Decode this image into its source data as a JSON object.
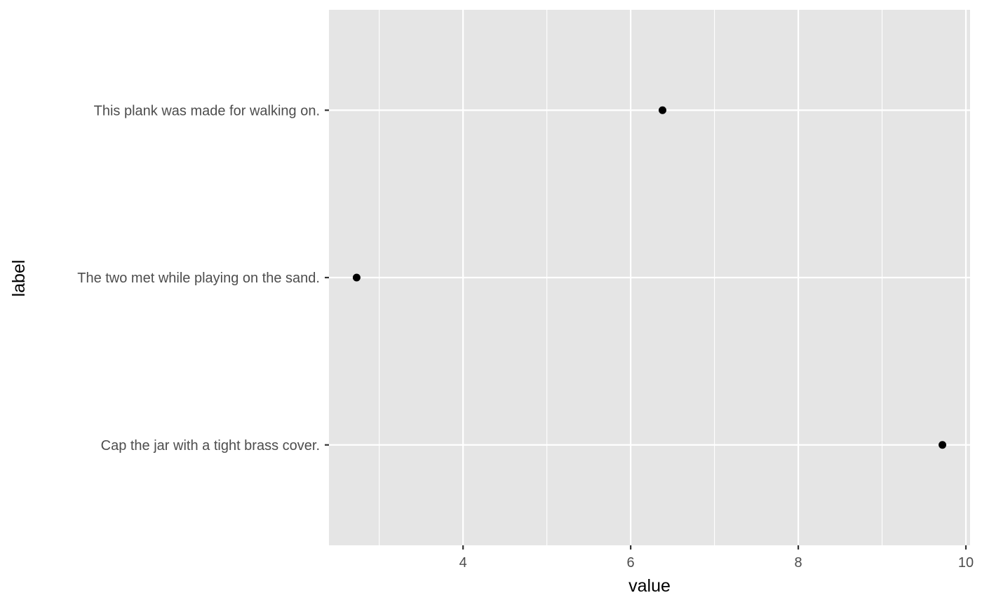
{
  "chart_data": {
    "type": "scatter",
    "xlabel": "value",
    "ylabel": "label",
    "categories": [
      "Cap the jar with a tight brass cover.",
      "The two met while playing on the sand.",
      "This plank was made for walking on."
    ],
    "points": [
      {
        "label": "This plank was made for walking on.",
        "value": 6.38
      },
      {
        "label": "The two met while playing on the sand.",
        "value": 2.73
      },
      {
        "label": "Cap the jar with a tight brass cover.",
        "value": 9.72
      }
    ],
    "xlim": [
      2.4,
      10.05
    ],
    "x_ticks": [
      "4",
      "6",
      "8",
      "10"
    ],
    "grid": true,
    "colors": {
      "panel": "#e5e5e5",
      "grid": "#ffffff",
      "point": "#000000",
      "tick_text": "#4d4d4d",
      "tick_mark": "#333333"
    }
  }
}
